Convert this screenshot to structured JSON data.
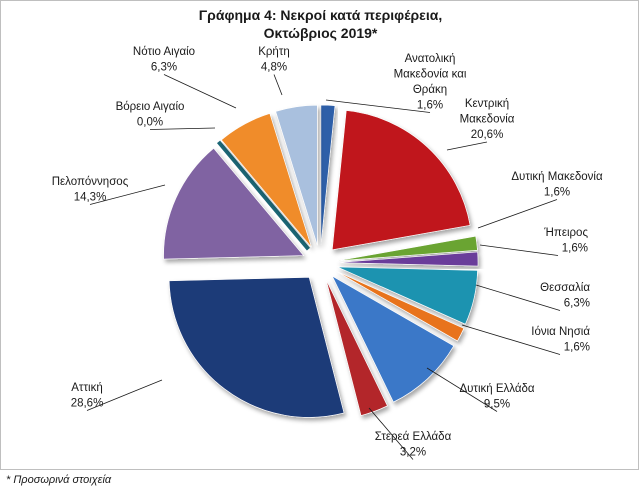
{
  "chart_data": {
    "type": "pie",
    "title_lines": [
      "Γράφημα 4: Νεκροί κατά περιφέρεια,",
      "Οκτώβριος 2019*"
    ],
    "footnote": "* Προσωρινά στοιχεία",
    "slices": [
      {
        "name": "Ανατολική Μακεδονία και Θράκη",
        "label_lines": [
          "Ανατολική",
          "Μακεδονία και",
          "Θράκη"
        ],
        "value": 1.6,
        "value_label": "1,6%",
        "color": "#2e5ea8"
      },
      {
        "name": "Κεντρική Μακεδονία",
        "label_lines": [
          "Κεντρική",
          "Μακεδονία"
        ],
        "value": 20.6,
        "value_label": "20,6%",
        "color": "#c0171b"
      },
      {
        "name": "Δυτική Μακεδονία",
        "label_lines": [
          "Δυτική Μακεδονία"
        ],
        "value": 1.6,
        "value_label": "1,6%",
        "color": "#6aa431"
      },
      {
        "name": "Ήπειρος",
        "label_lines": [
          "Ήπειρος"
        ],
        "value": 1.6,
        "value_label": "1,6%",
        "color": "#6b3c9a"
      },
      {
        "name": "Θεσσαλία",
        "label_lines": [
          "Θεσσαλία"
        ],
        "value": 6.3,
        "value_label": "6,3%",
        "color": "#1f93b0"
      },
      {
        "name": "Ιόνια Νησιά",
        "label_lines": [
          "Ιόνια Νησιά"
        ],
        "value": 1.6,
        "value_label": "1,6%",
        "color": "#e8731c"
      },
      {
        "name": "Δυτική Ελλάδα",
        "label_lines": [
          "Δυτική Ελλάδα"
        ],
        "value": 9.5,
        "value_label": "9,5%",
        "color": "#3b78c8"
      },
      {
        "name": "Στερεά Ελλάδα",
        "label_lines": [
          "Στερεά Ελλάδα"
        ],
        "value": 3.2,
        "value_label": "3,2%",
        "color": "#b3272c"
      },
      {
        "name": "Αττική",
        "label_lines": [
          "Αττική"
        ],
        "value": 28.6,
        "value_label": "28,6%",
        "color": "#1f3a78"
      },
      {
        "name": "Πελοπόννησος",
        "label_lines": [
          "Πελοπόννησος"
        ],
        "value": 14.3,
        "value_label": "14,3%",
        "color": "#8064a2"
      },
      {
        "name": "Βόρειο Αιγαίο",
        "label_lines": [
          "Βόρειο Αιγαίο"
        ],
        "value": 0.0,
        "value_label": "0,0%",
        "color": "#1b6675"
      },
      {
        "name": "Νότιο Αιγαίο",
        "label_lines": [
          "Νότιο Αιγαίο"
        ],
        "value": 6.3,
        "value_label": "6,3%",
        "color": "#f08c2a"
      },
      {
        "name": "Κρήτη",
        "label_lines": [
          "Κρήτη"
        ],
        "value": 4.8,
        "value_label": "4,8%",
        "color": "#a9c0de"
      }
    ]
  }
}
